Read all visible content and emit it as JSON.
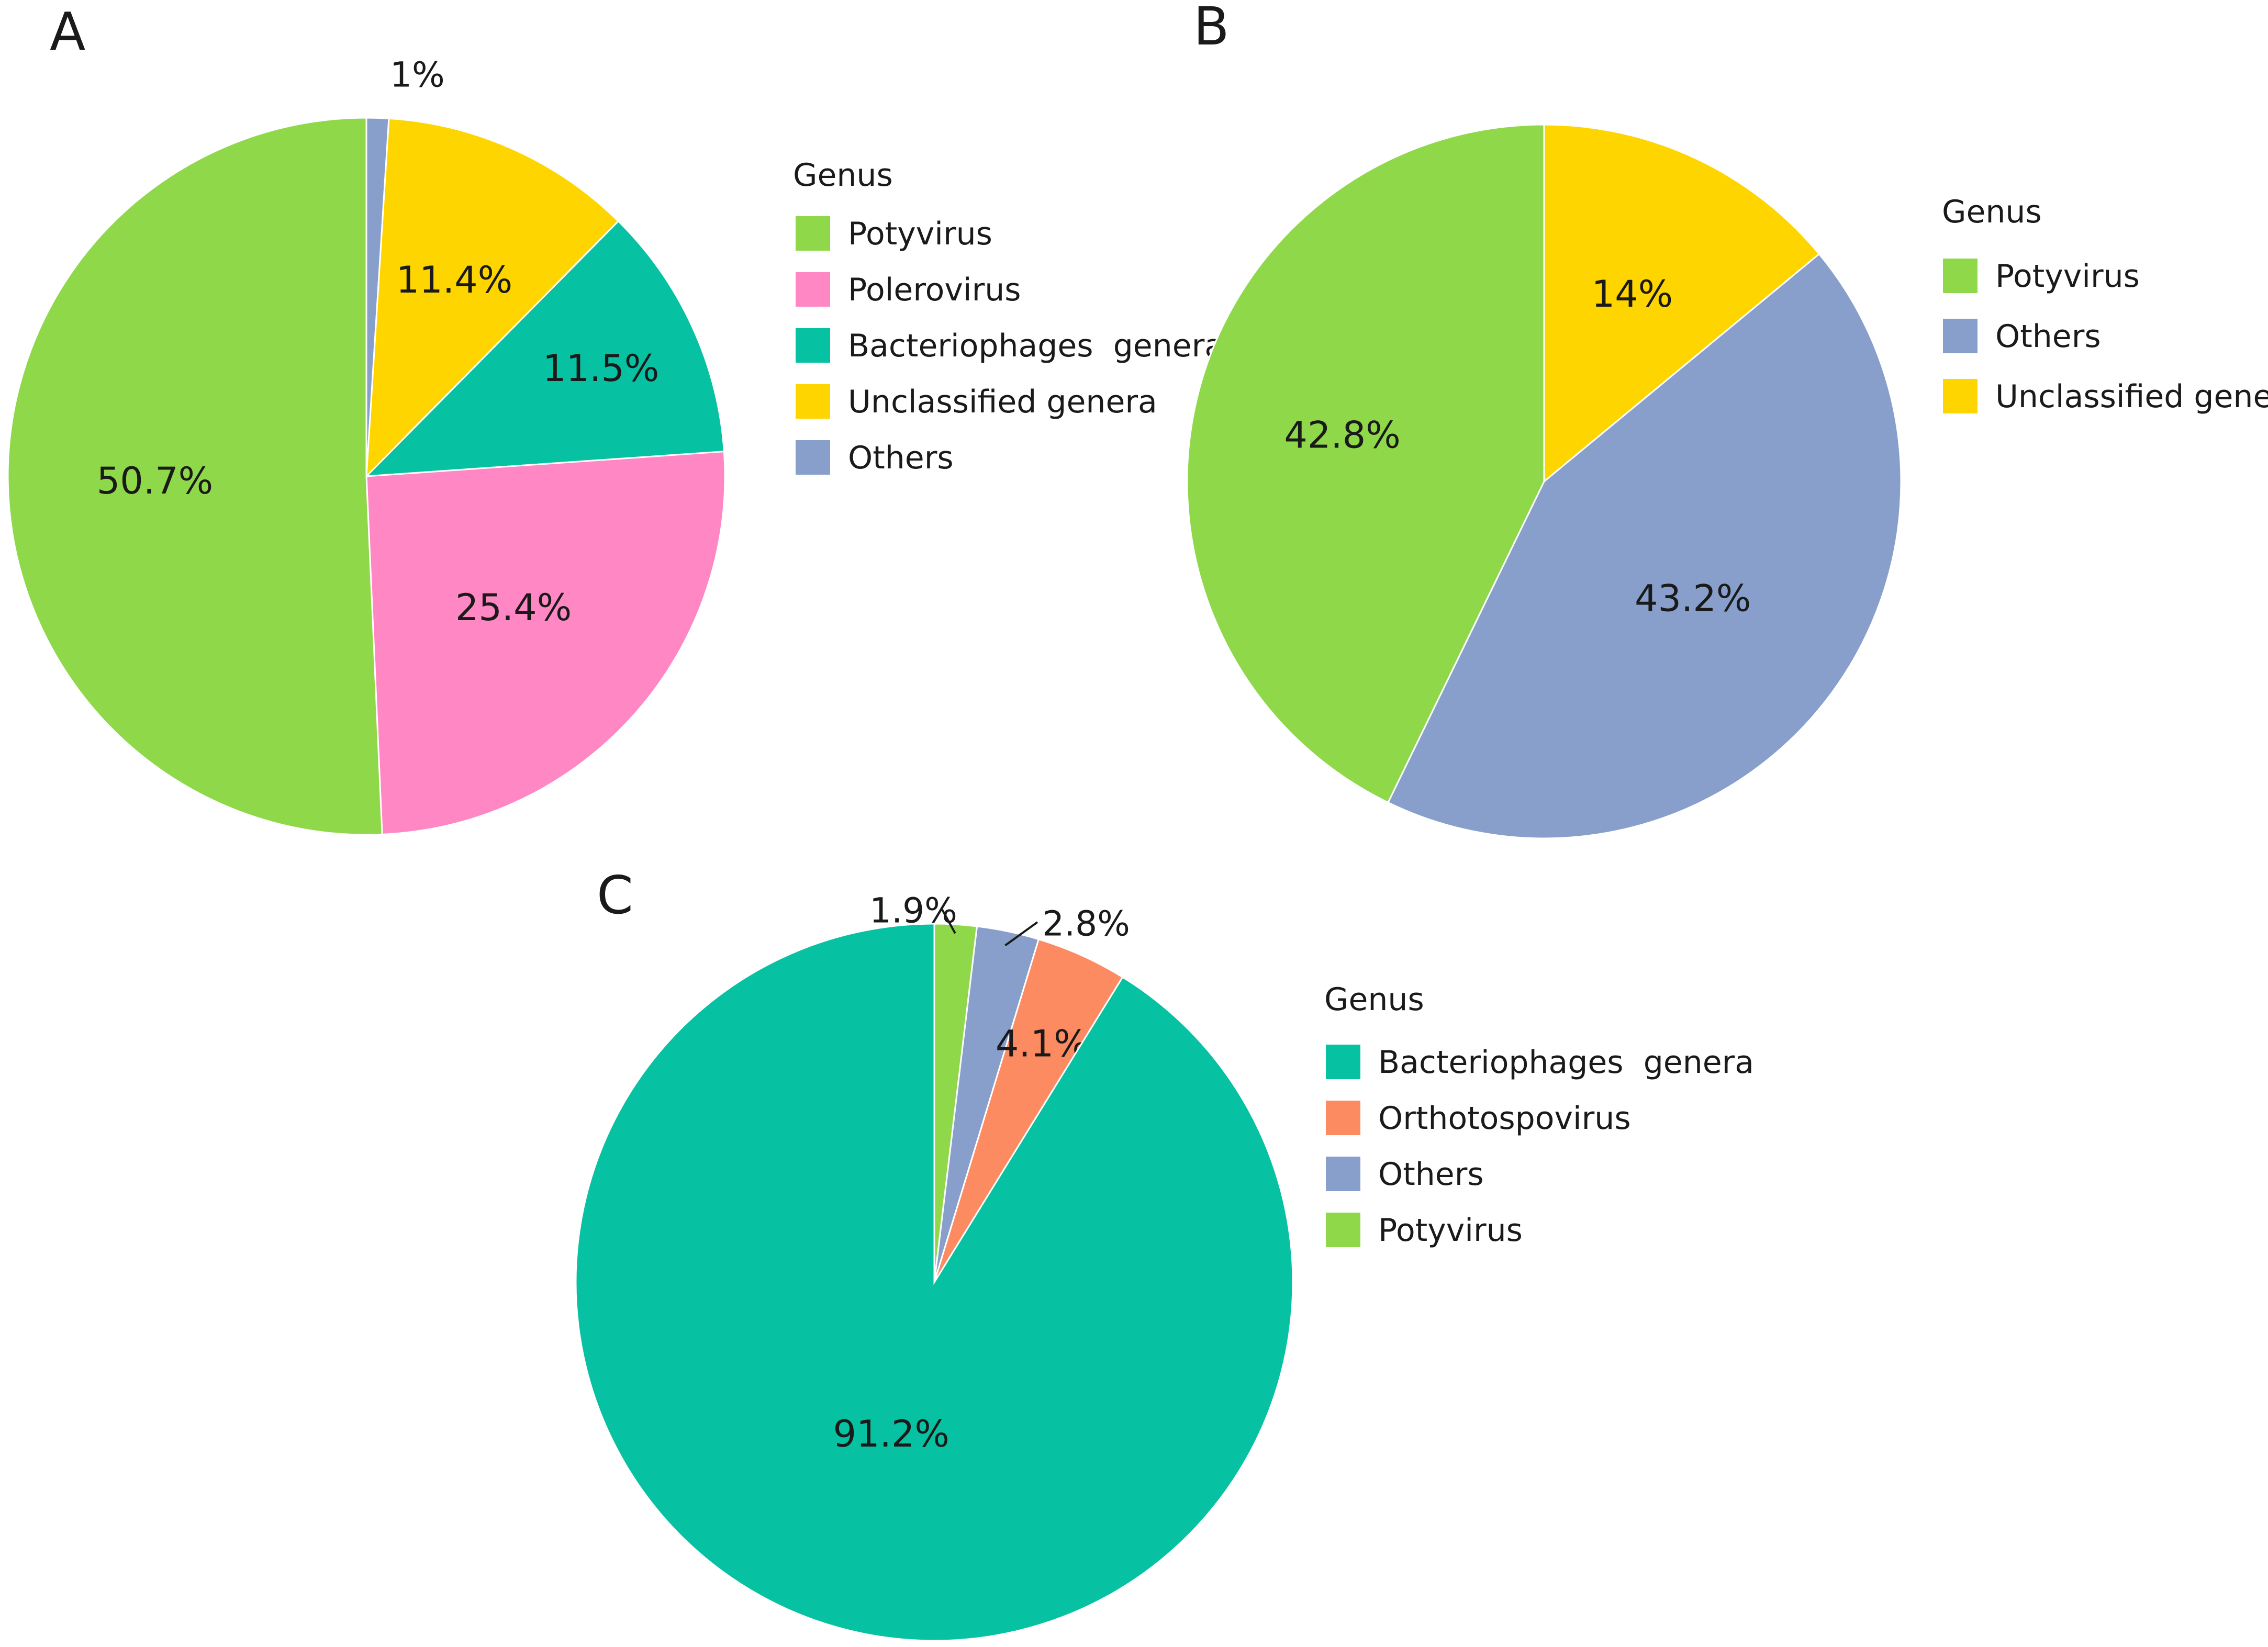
{
  "chart_data": [
    {
      "panel": "A",
      "type": "pie",
      "start_angle_deg": 0,
      "direction": "clockwise",
      "legend_title": "Genus",
      "legend": [
        "Potyvirus",
        "Polerovirus",
        "Bacteriophages  genera",
        "Unclassified genera",
        "Others"
      ],
      "slices": [
        {
          "name": "Others",
          "value": 1,
          "label": "1%",
          "color": "#889fcc"
        },
        {
          "name": "Unclassified genera",
          "value": 11.4,
          "label": "11.4%",
          "color": "#ffd500"
        },
        {
          "name": "Bacteriophages  genera",
          "value": 11.5,
          "label": "11.5%",
          "color": "#06c1a2"
        },
        {
          "name": "Polerovirus",
          "value": 25.4,
          "label": "25.4%",
          "color": "#ff88c4"
        },
        {
          "name": "Potyvirus",
          "value": 50.7,
          "label": "50.7%",
          "color": "#8ed84a"
        }
      ]
    },
    {
      "panel": "B",
      "type": "pie",
      "start_angle_deg": 0,
      "direction": "clockwise",
      "legend_title": "Genus",
      "legend": [
        "Potyvirus",
        "Others",
        "Unclassified genera"
      ],
      "slices": [
        {
          "name": "Unclassified genera",
          "value": 14,
          "label": "14%",
          "color": "#ffd500"
        },
        {
          "name": "Others",
          "value": 43.2,
          "label": "43.2%",
          "color": "#889fcc"
        },
        {
          "name": "Potyvirus",
          "value": 42.8,
          "label": "42.8%",
          "color": "#8ed84a"
        }
      ]
    },
    {
      "panel": "C",
      "type": "pie",
      "start_angle_deg": 0,
      "direction": "clockwise",
      "legend_title": "Genus",
      "legend": [
        "Bacteriophages  genera",
        "Orthotospovirus",
        "Others",
        "Potyvirus"
      ],
      "slices": [
        {
          "name": "Potyvirus",
          "value": 1.9,
          "label": "1.9%",
          "color": "#8ed84a"
        },
        {
          "name": "Others",
          "value": 2.8,
          "label": "2.8%",
          "color": "#889fcc"
        },
        {
          "name": "Orthotospovirus",
          "value": 4.1,
          "label": "4.1%",
          "color": "#fc8b62"
        },
        {
          "name": "Bacteriophages  genera",
          "value": 91.2,
          "label": "91.2%",
          "color": "#06c1a2"
        }
      ]
    }
  ]
}
